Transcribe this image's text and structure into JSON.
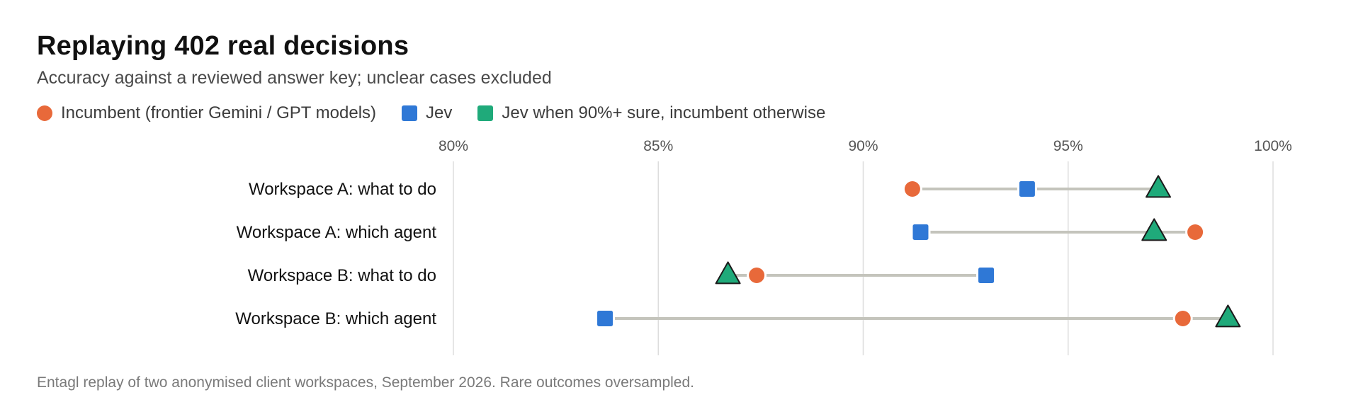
{
  "chart_data": {
    "type": "dot-plot",
    "title": "Replaying 402 real decisions",
    "subtitle": "Accuracy against a reviewed answer key; unclear cases excluded",
    "footnote": "Entagl replay of two anonymised client workspaces, September 2026. Rare outcomes oversampled.",
    "xlim": [
      80,
      100
    ],
    "xticks": [
      80,
      85,
      90,
      95,
      100
    ],
    "xtick_labels": [
      "80%",
      "85%",
      "90%",
      "95%",
      "100%"
    ],
    "x_axis_position": "top",
    "grid": true,
    "legend_position": "top-left",
    "categories": [
      "Workspace A: what to do",
      "Workspace A: which agent",
      "Workspace B: what to do",
      "Workspace B: which agent"
    ],
    "series": [
      {
        "name": "Incumbent (frontier Gemini / GPT models)",
        "marker": "circle",
        "color": "#E8693A",
        "values": [
          91.2,
          98.1,
          87.4,
          97.8
        ]
      },
      {
        "name": "Jev",
        "marker": "square",
        "color": "#2F78D6",
        "values": [
          94.0,
          91.4,
          93.0,
          83.7
        ]
      },
      {
        "name": "Jev when 90%+ sure, incumbent otherwise",
        "marker": "triangle",
        "color": "#1FAA7A",
        "values": [
          97.2,
          97.1,
          86.7,
          98.9
        ]
      }
    ],
    "connector_color": "#C4C4BC",
    "grid_color": "#DDDDDD"
  }
}
